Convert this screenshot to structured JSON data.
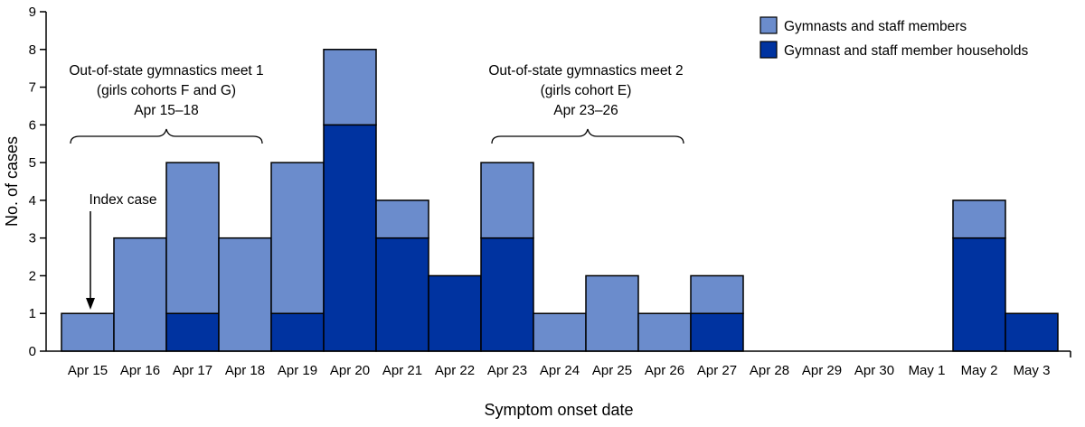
{
  "chart_data": {
    "type": "bar",
    "stacked": true,
    "categories": [
      "Apr 15",
      "Apr 16",
      "Apr 17",
      "Apr 18",
      "Apr 19",
      "Apr 20",
      "Apr 21",
      "Apr 22",
      "Apr 23",
      "Apr 24",
      "Apr 25",
      "Apr 26",
      "Apr 27",
      "Apr 28",
      "Apr 29",
      "Apr 30",
      "May 1",
      "May 2",
      "May 3"
    ],
    "series": [
      {
        "name": "Gymnast and staff member households",
        "color": "#0033a0",
        "values": [
          0,
          0,
          1,
          0,
          1,
          6,
          3,
          2,
          3,
          0,
          0,
          0,
          1,
          0,
          0,
          0,
          0,
          3,
          1
        ]
      },
      {
        "name": "Gymnasts and staff members",
        "color": "#6b8ccc",
        "values": [
          1,
          3,
          4,
          3,
          4,
          2,
          1,
          0,
          2,
          1,
          2,
          1,
          1,
          0,
          0,
          0,
          0,
          1,
          0
        ]
      }
    ],
    "xlabel": "Symptom onset date",
    "ylabel": "No. of cases",
    "ylim": [
      0,
      9
    ],
    "yticks": [
      0,
      1,
      2,
      3,
      4,
      5,
      6,
      7,
      8,
      9
    ],
    "grid": false,
    "legend_position": "top-right",
    "legend": [
      {
        "label": "Gymnasts and staff members",
        "color": "#6b8ccc"
      },
      {
        "label": "Gymnast and staff member households",
        "color": "#0033a0"
      }
    ],
    "annotations": {
      "meet1": {
        "lines": [
          "Out-of-state gymnastics meet 1",
          "(girls cohorts F and G)",
          "Apr 15–18"
        ],
        "from": "Apr 15",
        "to": "Apr 18"
      },
      "meet2": {
        "lines": [
          "Out-of-state gymnastics meet 2",
          "(girls cohort E)",
          "Apr 23–26"
        ],
        "from": "Apr 23",
        "to": "Apr 26"
      },
      "index_case": {
        "label": "Index case",
        "category": "Apr 15"
      }
    }
  }
}
